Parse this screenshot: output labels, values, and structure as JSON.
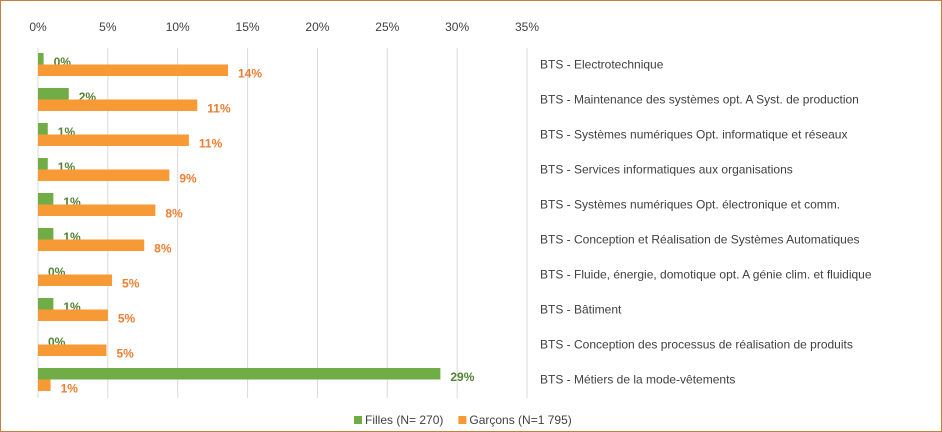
{
  "chart_data": {
    "type": "hbar",
    "categories": [
      "BTS - Electrotechnique",
      "BTS - Maintenance des systèmes opt. A Syst. de production",
      "BTS - Systèmes numériques Opt. informatique et réseaux",
      "BTS - Services informatiques aux organisations",
      "BTS - Systèmes numériques Opt. électronique et comm.",
      "BTS - Conception et Réalisation de Systèmes Automatiques",
      "BTS - Fluide, énergie, domotique opt. A génie clim. et fluidique",
      "BTS - Bâtiment",
      "BTS - Conception des processus de réalisation de produits",
      "BTS - Métiers de la mode-vêtements"
    ],
    "series": [
      {
        "name": "Filles (N= 270)",
        "color": "#70ad47",
        "label_color": "#548235",
        "values": [
          0.4,
          2.2,
          0.7,
          0.7,
          1.1,
          1.1,
          0,
          1.1,
          0,
          28.8
        ],
        "value_labels": [
          "0%",
          "2%",
          "1%",
          "1%",
          "1%",
          "1%",
          "0%",
          "1%",
          "0%",
          "29%"
        ]
      },
      {
        "name": "Garçons (N=1 795)",
        "color": "#f79a35",
        "label_color": "#ed7d31",
        "values": [
          13.6,
          11.4,
          10.8,
          9.4,
          8.4,
          7.6,
          5.3,
          5.0,
          4.9,
          0.9
        ],
        "value_labels": [
          "14%",
          "11%",
          "11%",
          "9%",
          "8%",
          "8%",
          "5%",
          "5%",
          "5%",
          "1%"
        ]
      }
    ],
    "xlim": [
      0,
      35
    ],
    "xticks": [
      {
        "value": 0,
        "label": "0%"
      },
      {
        "value": 5,
        "label": "5%"
      },
      {
        "value": 10,
        "label": "10%"
      },
      {
        "value": 15,
        "label": "15%"
      },
      {
        "value": 20,
        "label": "20%"
      },
      {
        "value": 25,
        "label": "25%"
      },
      {
        "value": 30,
        "label": "30%"
      },
      {
        "value": 35,
        "label": "35%"
      }
    ],
    "grid": true,
    "legend": "bottom"
  }
}
